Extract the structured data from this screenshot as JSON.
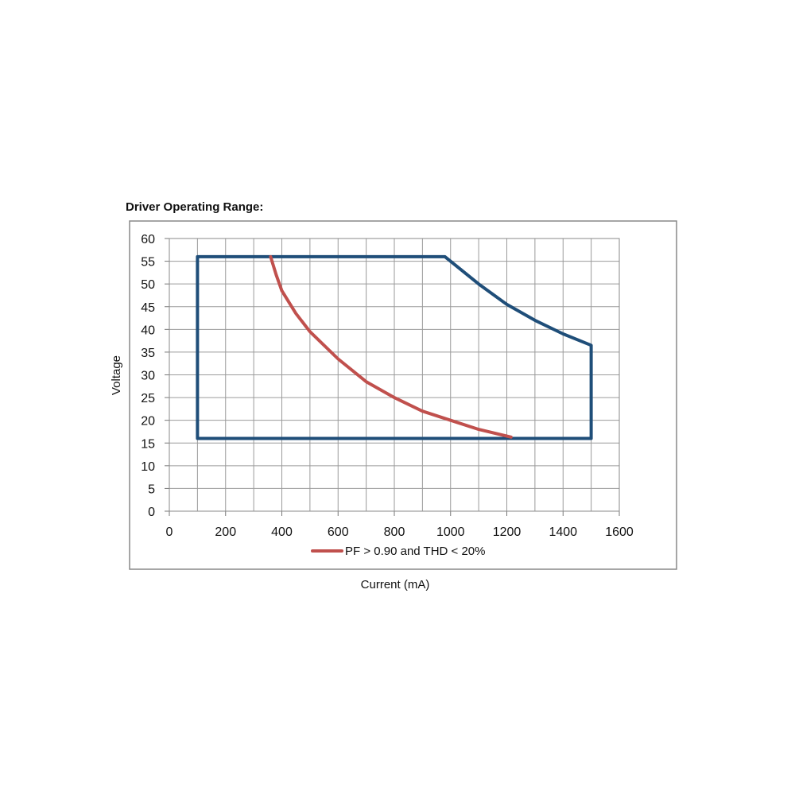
{
  "title": "Driver Operating Range:",
  "chart_data": {
    "type": "line",
    "title": "Driver Operating Range:",
    "xlabel": "Current (mA)",
    "ylabel": "Voltage",
    "xlim": [
      0,
      1600
    ],
    "ylim": [
      0,
      60
    ],
    "x_ticks": [
      0,
      200,
      400,
      600,
      800,
      1000,
      1200,
      1400,
      1600
    ],
    "y_ticks": [
      0,
      5,
      10,
      15,
      20,
      25,
      30,
      35,
      40,
      45,
      50,
      55,
      60
    ],
    "grid": true,
    "legend_position": "bottom",
    "series": [
      {
        "color": "#1f4e79",
        "points": [
          [
            100,
            16
          ],
          [
            100,
            56
          ],
          [
            980,
            56
          ],
          [
            1100,
            50
          ],
          [
            1200,
            45.5
          ],
          [
            1300,
            42
          ],
          [
            1400,
            39
          ],
          [
            1500,
            36.5
          ],
          [
            1500,
            16
          ],
          [
            100,
            16
          ]
        ]
      },
      {
        "name": "PF > 0.90 and THD < 20%",
        "color": "#c0504d",
        "points": [
          [
            360,
            56
          ],
          [
            380,
            52
          ],
          [
            400,
            48.5
          ],
          [
            450,
            43.5
          ],
          [
            500,
            39.5
          ],
          [
            600,
            33.5
          ],
          [
            700,
            28.5
          ],
          [
            800,
            25
          ],
          [
            900,
            22
          ],
          [
            1000,
            20
          ],
          [
            1100,
            18
          ],
          [
            1215,
            16.3
          ]
        ]
      }
    ]
  }
}
